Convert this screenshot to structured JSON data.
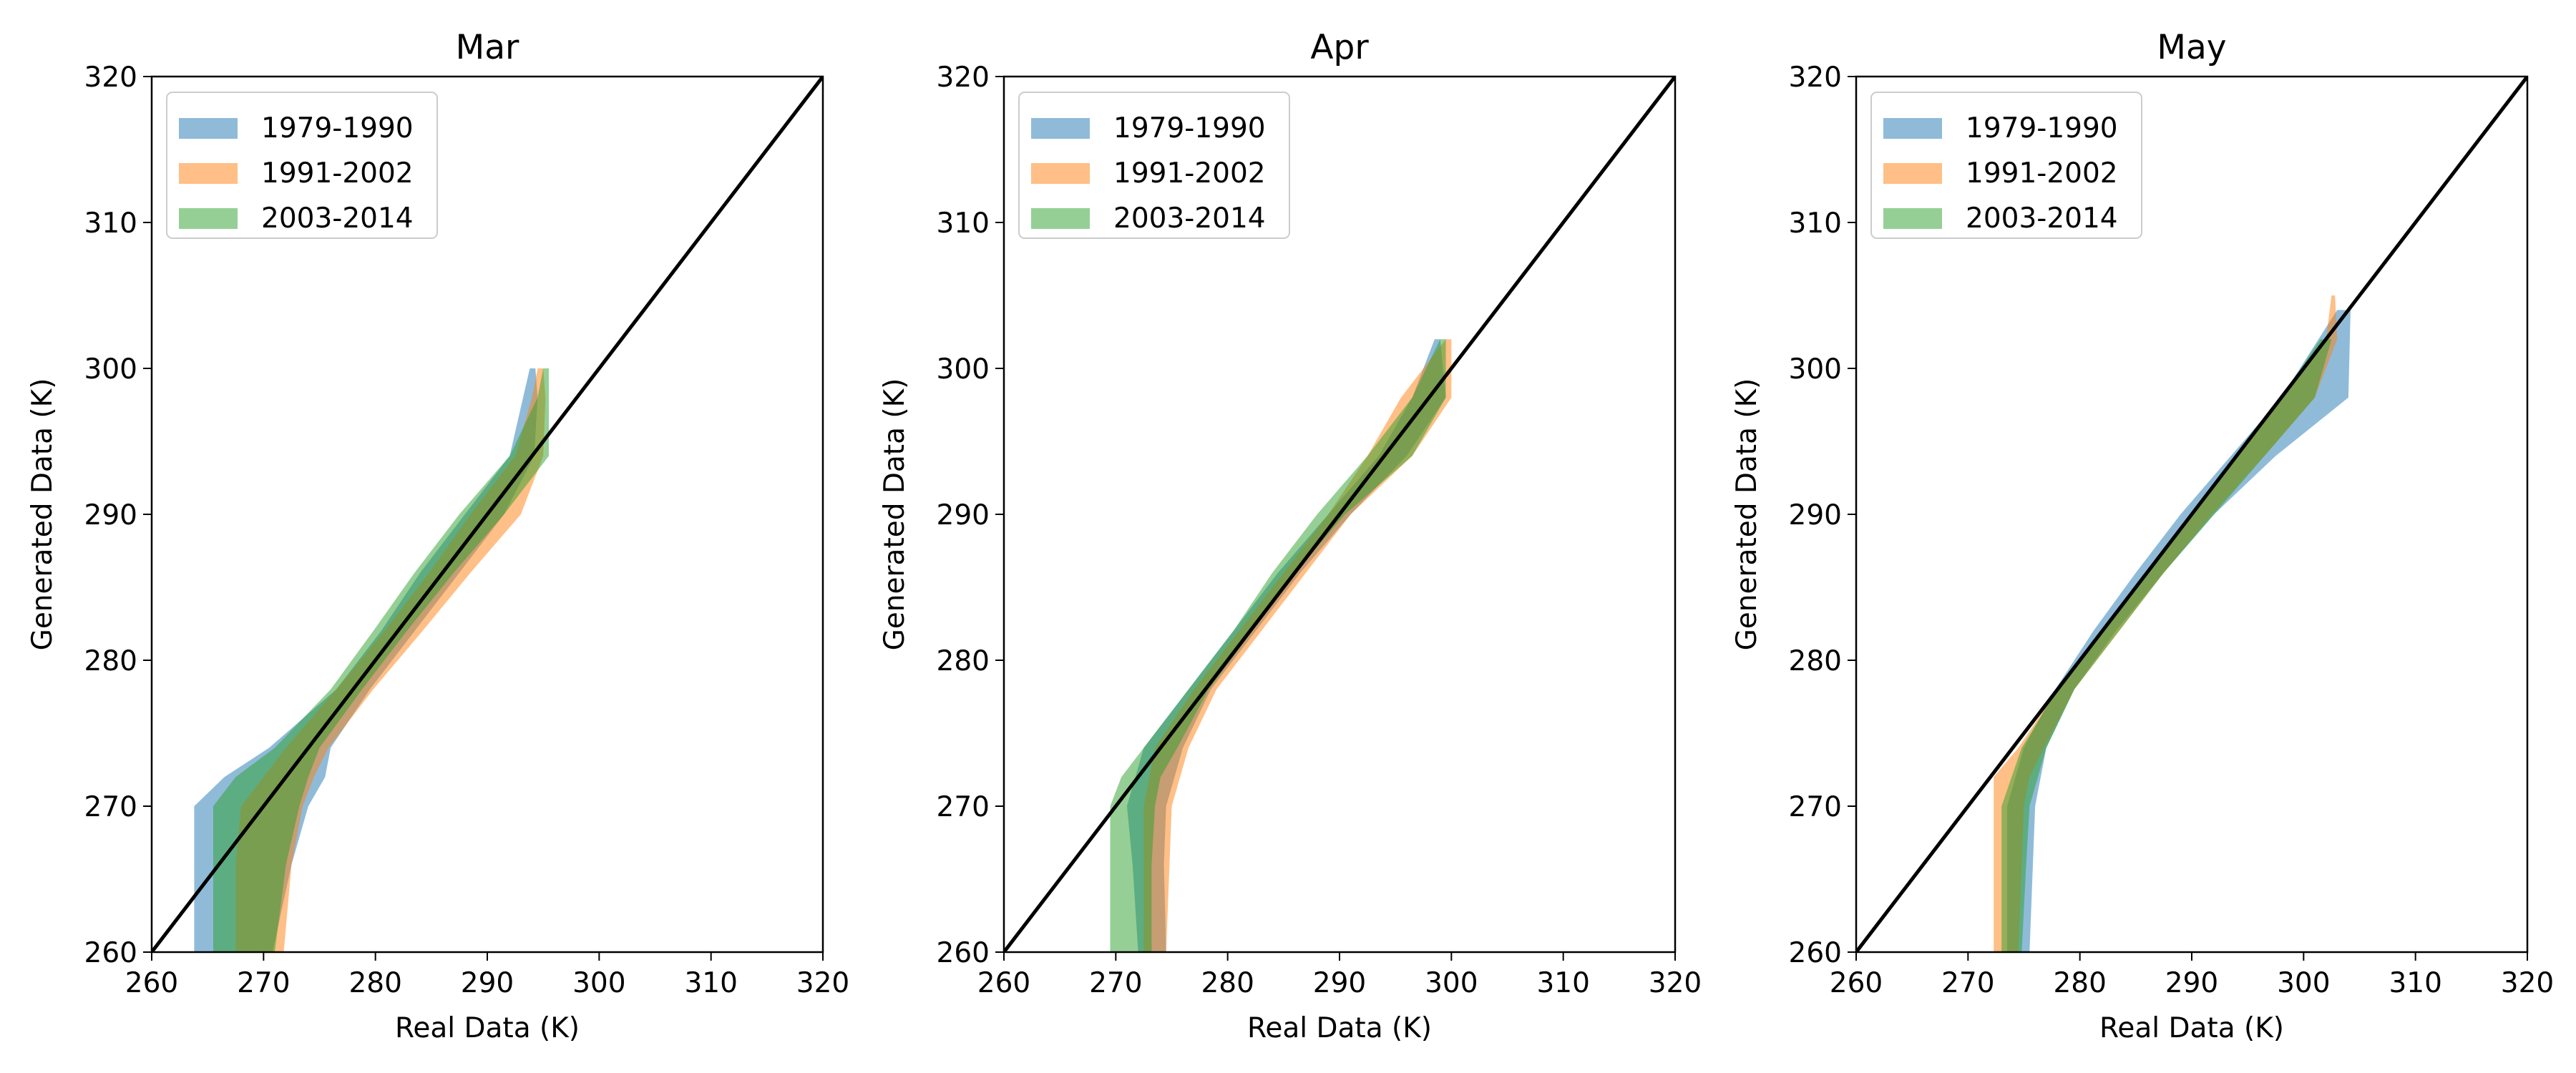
{
  "chart_data": [
    {
      "type": "area",
      "title": "Mar",
      "xlabel": "Real Data (K)",
      "ylabel": "Generated Data (K)",
      "xlim": [
        260,
        320
      ],
      "ylim": [
        260,
        320
      ],
      "xticks": [
        "260",
        "270",
        "280",
        "290",
        "300",
        "310",
        "320"
      ],
      "yticks": [
        "260",
        "270",
        "280",
        "290",
        "300",
        "310",
        "320"
      ],
      "legend": "upper-left",
      "reference_line": "y = x",
      "series": [
        {
          "name": "1979-1990",
          "color": "#1f77b4",
          "bands": [
            {
              "y": 260,
              "x_low": 263.8,
              "x_high": 270.8
            },
            {
              "y": 266,
              "x_low": 263.8,
              "x_high": 272.5
            },
            {
              "y": 270,
              "x_low": 263.8,
              "x_high": 274.0
            },
            {
              "y": 272,
              "x_low": 266.5,
              "x_high": 275.5
            },
            {
              "y": 274,
              "x_low": 270.5,
              "x_high": 276.0
            },
            {
              "y": 278,
              "x_low": 276.5,
              "x_high": 279.5
            },
            {
              "y": 282,
              "x_low": 280.5,
              "x_high": 283.5
            },
            {
              "y": 286,
              "x_low": 284.0,
              "x_high": 287.5
            },
            {
              "y": 290,
              "x_low": 288.0,
              "x_high": 291.5
            },
            {
              "y": 294,
              "x_low": 292.0,
              "x_high": 294.2
            },
            {
              "y": 298,
              "x_low": 293.2,
              "x_high": 294.5
            },
            {
              "y": 300,
              "x_low": 293.8,
              "x_high": 294.3
            }
          ]
        },
        {
          "name": "1991-2002",
          "color": "#ff7f0e",
          "bands": [
            {
              "y": 260,
              "x_low": 267.5,
              "x_high": 271.8
            },
            {
              "y": 266,
              "x_low": 267.5,
              "x_high": 272.5
            },
            {
              "y": 270,
              "x_low": 268.0,
              "x_high": 273.5
            },
            {
              "y": 272,
              "x_low": 270.0,
              "x_high": 274.5
            },
            {
              "y": 274,
              "x_low": 272.0,
              "x_high": 275.8
            },
            {
              "y": 278,
              "x_low": 276.5,
              "x_high": 279.8
            },
            {
              "y": 282,
              "x_low": 280.8,
              "x_high": 284.2
            },
            {
              "y": 286,
              "x_low": 284.8,
              "x_high": 288.5
            },
            {
              "y": 290,
              "x_low": 288.5,
              "x_high": 293.0
            },
            {
              "y": 294,
              "x_low": 292.5,
              "x_high": 295.0
            },
            {
              "y": 298,
              "x_low": 294.0,
              "x_high": 295.2
            },
            {
              "y": 300,
              "x_low": 294.5,
              "x_high": 295.0
            }
          ]
        },
        {
          "name": "2003-2014",
          "color": "#2ca02c",
          "bands": [
            {
              "y": 260,
              "x_low": 265.5,
              "x_high": 271.0
            },
            {
              "y": 266,
              "x_low": 265.5,
              "x_high": 272.0
            },
            {
              "y": 270,
              "x_low": 265.5,
              "x_high": 273.2
            },
            {
              "y": 272,
              "x_low": 267.5,
              "x_high": 274.0
            },
            {
              "y": 274,
              "x_low": 271.0,
              "x_high": 275.0
            },
            {
              "y": 278,
              "x_low": 276.0,
              "x_high": 278.8
            },
            {
              "y": 282,
              "x_low": 279.8,
              "x_high": 282.8
            },
            {
              "y": 286,
              "x_low": 283.5,
              "x_high": 287.0
            },
            {
              "y": 290,
              "x_low": 287.5,
              "x_high": 291.5
            },
            {
              "y": 294,
              "x_low": 292.0,
              "x_high": 295.5
            },
            {
              "y": 298,
              "x_low": 294.5,
              "x_high": 295.5
            },
            {
              "y": 300,
              "x_low": 295.0,
              "x_high": 295.5
            }
          ]
        }
      ]
    },
    {
      "type": "area",
      "title": "Apr",
      "xlabel": "Real Data (K)",
      "ylabel": "Generated Data (K)",
      "xlim": [
        260,
        320
      ],
      "ylim": [
        260,
        320
      ],
      "xticks": [
        "260",
        "270",
        "280",
        "290",
        "300",
        "310",
        "320"
      ],
      "yticks": [
        "260",
        "270",
        "280",
        "290",
        "300",
        "310",
        "320"
      ],
      "legend": "upper-left",
      "reference_line": "y = x",
      "series": [
        {
          "name": "1979-1990",
          "color": "#1f77b4",
          "bands": [
            {
              "y": 260,
              "x_low": 272.0,
              "x_high": 274.5
            },
            {
              "y": 266,
              "x_low": 271.5,
              "x_high": 274.3
            },
            {
              "y": 270,
              "x_low": 271.0,
              "x_high": 274.5
            },
            {
              "y": 274,
              "x_low": 272.5,
              "x_high": 276.0
            },
            {
              "y": 278,
              "x_low": 276.5,
              "x_high": 278.5
            },
            {
              "y": 282,
              "x_low": 280.5,
              "x_high": 282.5
            },
            {
              "y": 286,
              "x_low": 284.5,
              "x_high": 286.5
            },
            {
              "y": 290,
              "x_low": 289.0,
              "x_high": 291.0
            },
            {
              "y": 294,
              "x_low": 293.5,
              "x_high": 296.0
            },
            {
              "y": 298,
              "x_low": 296.5,
              "x_high": 299.5
            },
            {
              "y": 302,
              "x_low": 298.5,
              "x_high": 299.0
            }
          ]
        },
        {
          "name": "1991-2002",
          "color": "#ff7f0e",
          "bands": [
            {
              "y": 260,
              "x_low": 272.5,
              "x_high": 274.5
            },
            {
              "y": 266,
              "x_low": 272.5,
              "x_high": 274.8
            },
            {
              "y": 270,
              "x_low": 272.5,
              "x_high": 275.0
            },
            {
              "y": 274,
              "x_low": 273.5,
              "x_high": 276.5
            },
            {
              "y": 278,
              "x_low": 277.0,
              "x_high": 279.0
            },
            {
              "y": 282,
              "x_low": 281.0,
              "x_high": 283.0
            },
            {
              "y": 286,
              "x_low": 285.0,
              "x_high": 287.0
            },
            {
              "y": 290,
              "x_low": 289.0,
              "x_high": 291.0
            },
            {
              "y": 294,
              "x_low": 292.5,
              "x_high": 296.5
            },
            {
              "y": 298,
              "x_low": 295.5,
              "x_high": 300.0
            },
            {
              "y": 302,
              "x_low": 299.5,
              "x_high": 300.0
            }
          ]
        },
        {
          "name": "2003-2014",
          "color": "#2ca02c",
          "bands": [
            {
              "y": 260,
              "x_low": 269.5,
              "x_high": 273.2
            },
            {
              "y": 266,
              "x_low": 269.5,
              "x_high": 273.2
            },
            {
              "y": 270,
              "x_low": 269.5,
              "x_high": 273.5
            },
            {
              "y": 272,
              "x_low": 270.5,
              "x_high": 274.0
            },
            {
              "y": 274,
              "x_low": 272.5,
              "x_high": 275.5
            },
            {
              "y": 278,
              "x_low": 276.5,
              "x_high": 278.3
            },
            {
              "y": 282,
              "x_low": 280.5,
              "x_high": 282.2
            },
            {
              "y": 286,
              "x_low": 284.0,
              "x_high": 286.0
            },
            {
              "y": 290,
              "x_low": 288.0,
              "x_high": 290.5
            },
            {
              "y": 294,
              "x_low": 292.5,
              "x_high": 296.5
            },
            {
              "y": 298,
              "x_low": 296.5,
              "x_high": 299.5
            },
            {
              "y": 302,
              "x_low": 299.0,
              "x_high": 299.5
            }
          ]
        }
      ]
    },
    {
      "type": "area",
      "title": "May",
      "xlabel": "Real Data (K)",
      "ylabel": "Generated Data (K)",
      "xlim": [
        260,
        320
      ],
      "ylim": [
        260,
        320
      ],
      "xticks": [
        "260",
        "270",
        "280",
        "290",
        "300",
        "310",
        "320"
      ],
      "yticks": [
        "260",
        "270",
        "280",
        "290",
        "300",
        "310",
        "320"
      ],
      "legend": "upper-left",
      "reference_line": "y = x",
      "series": [
        {
          "name": "1979-1990",
          "color": "#1f77b4",
          "bands": [
            {
              "y": 260,
              "x_low": 273.5,
              "x_high": 275.5
            },
            {
              "y": 266,
              "x_low": 273.5,
              "x_high": 275.8
            },
            {
              "y": 270,
              "x_low": 273.5,
              "x_high": 276.0
            },
            {
              "y": 274,
              "x_low": 275.0,
              "x_high": 277.0
            },
            {
              "y": 278,
              "x_low": 277.8,
              "x_high": 279.5
            },
            {
              "y": 282,
              "x_low": 281.2,
              "x_high": 283.2
            },
            {
              "y": 286,
              "x_low": 285.0,
              "x_high": 287.5
            },
            {
              "y": 290,
              "x_low": 289.0,
              "x_high": 292.0
            },
            {
              "y": 294,
              "x_low": 293.5,
              "x_high": 297.5
            },
            {
              "y": 298,
              "x_low": 298.0,
              "x_high": 304.0
            },
            {
              "y": 304,
              "x_low": 303.0,
              "x_high": 304.2
            }
          ]
        },
        {
          "name": "1991-2002",
          "color": "#ff7f0e",
          "bands": [
            {
              "y": 260,
              "x_low": 272.3,
              "x_high": 274.5
            },
            {
              "y": 266,
              "x_low": 272.3,
              "x_high": 274.8
            },
            {
              "y": 270,
              "x_low": 272.3,
              "x_high": 275.0
            },
            {
              "y": 272,
              "x_low": 272.3,
              "x_high": 275.5
            },
            {
              "y": 274,
              "x_low": 274.5,
              "x_high": 276.8
            },
            {
              "y": 278,
              "x_low": 278.0,
              "x_high": 279.5
            },
            {
              "y": 282,
              "x_low": 281.8,
              "x_high": 283.5
            },
            {
              "y": 286,
              "x_low": 285.8,
              "x_high": 287.5
            },
            {
              "y": 290,
              "x_low": 289.8,
              "x_high": 291.8
            },
            {
              "y": 294,
              "x_low": 294.0,
              "x_high": 296.5
            },
            {
              "y": 298,
              "x_low": 298.0,
              "x_high": 301.0
            },
            {
              "y": 302,
              "x_low": 302.0,
              "x_high": 303.0
            },
            {
              "y": 305,
              "x_low": 302.5,
              "x_high": 302.8
            }
          ]
        },
        {
          "name": "2003-2014",
          "color": "#2ca02c",
          "bands": [
            {
              "y": 260,
              "x_low": 273.0,
              "x_high": 274.8
            },
            {
              "y": 266,
              "x_low": 273.0,
              "x_high": 275.2
            },
            {
              "y": 270,
              "x_low": 273.0,
              "x_high": 275.5
            },
            {
              "y": 274,
              "x_low": 274.8,
              "x_high": 277.0
            },
            {
              "y": 278,
              "x_low": 278.0,
              "x_high": 279.5
            },
            {
              "y": 282,
              "x_low": 282.0,
              "x_high": 283.5
            },
            {
              "y": 286,
              "x_low": 286.0,
              "x_high": 287.5
            },
            {
              "y": 290,
              "x_low": 290.0,
              "x_high": 292.0
            },
            {
              "y": 294,
              "x_low": 294.0,
              "x_high": 296.5
            },
            {
              "y": 298,
              "x_low": 298.0,
              "x_high": 301.0
            },
            {
              "y": 302,
              "x_low": 301.5,
              "x_high": 302.5
            }
          ]
        }
      ]
    }
  ]
}
